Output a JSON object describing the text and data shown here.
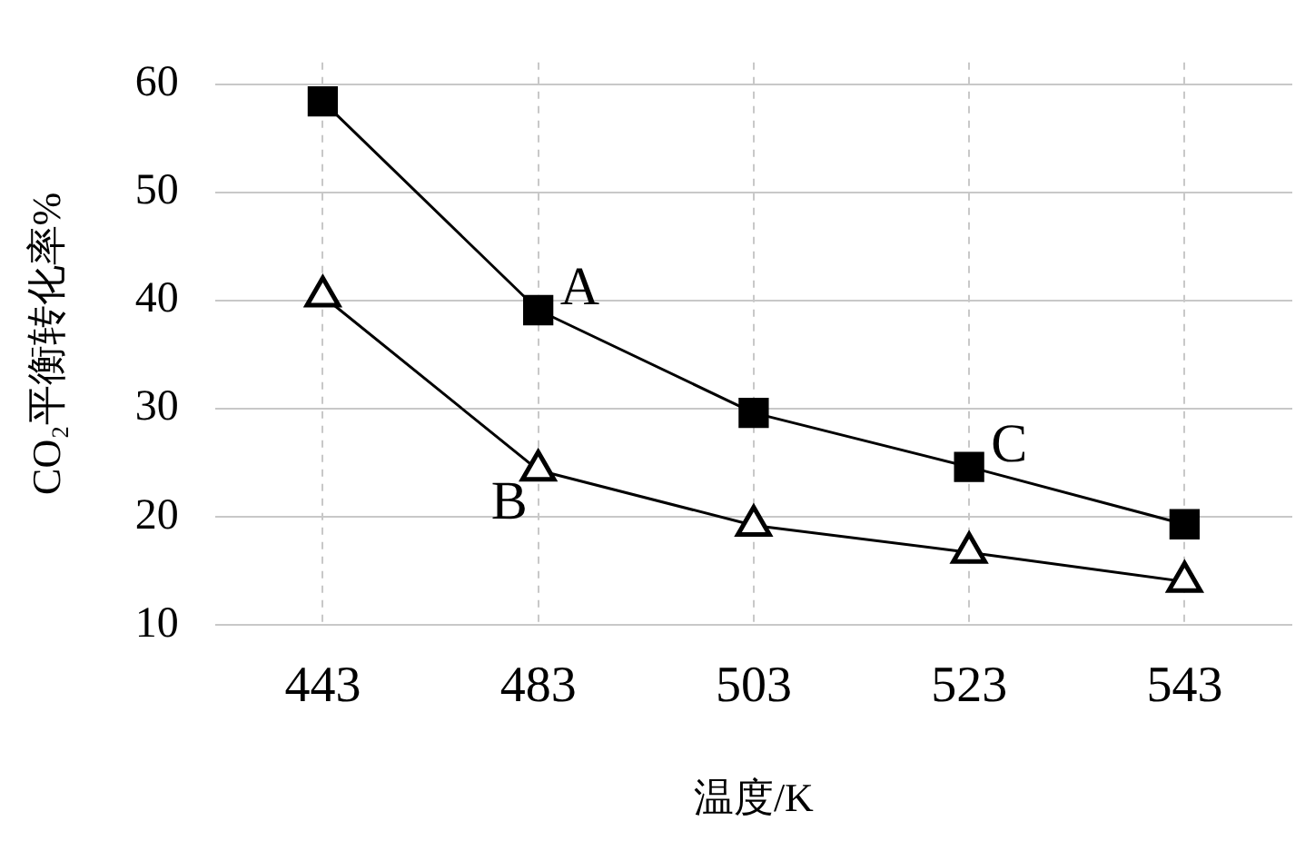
{
  "chart_data": {
    "type": "line",
    "xlabel": "温度/K",
    "ylabel": "CO₂平衡转化率%",
    "categories": [
      "443",
      "483",
      "503",
      "523",
      "543"
    ],
    "series": [
      {
        "color": "#000000",
        "marker": "square",
        "values": [
          58.4,
          39.1,
          29.6,
          24.6,
          19.3
        ]
      },
      {
        "color": "#000000",
        "marker": "triangle",
        "values": [
          40.4,
          24.3,
          19.2,
          16.7,
          14.0
        ]
      }
    ],
    "ylim": [
      10,
      62
    ],
    "yticks": [
      10,
      20,
      30,
      40,
      50,
      60
    ],
    "grid": true,
    "legend": false,
    "line_style": "solid",
    "annotations": [
      {
        "text": "A",
        "x": "483",
        "y": 39.1
      },
      {
        "text": "B",
        "x": "483",
        "y": 24.3
      },
      {
        "text": "C",
        "x": "523",
        "y": 24.6
      }
    ]
  }
}
